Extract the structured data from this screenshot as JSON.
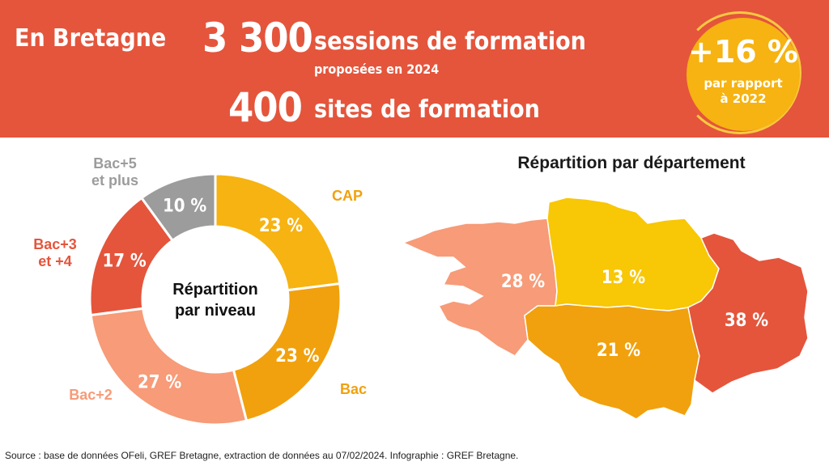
{
  "banner": {
    "region": "En Bretagne",
    "sessions_number": "3 300",
    "sessions_label": "sessions de formation",
    "sessions_sub": "proposées en 2024",
    "sites_number": "400",
    "sites_label": "sites de formation",
    "badge_value": "+16 %",
    "badge_line1": "par rapport",
    "badge_line2": "à 2022"
  },
  "colors": {
    "banner": "#e4553c",
    "cap": "#f6b311",
    "bac": "#f1a10d",
    "bac2": "#f79b78",
    "bac34": "#e4553c",
    "bac5": "#9c9c9c",
    "finistere": "#f79b78",
    "cotes_armor": "#f8c705",
    "morbihan": "#f1a10d",
    "ille_vilaine": "#e4553c"
  },
  "chart_data": [
    {
      "type": "pie",
      "title": "Répartition par niveau",
      "title_lines": [
        "Répartition",
        "par niveau"
      ],
      "categories": [
        "CAP",
        "Bac",
        "Bac+2",
        "Bac+3 et +4",
        "Bac+5 et plus"
      ],
      "category_lines": [
        [
          "CAP"
        ],
        [
          "Bac"
        ],
        [
          "Bac+2"
        ],
        [
          "Bac+3",
          "et +4"
        ],
        [
          "Bac+5",
          "et plus"
        ]
      ],
      "values": [
        23,
        23,
        27,
        17,
        10
      ],
      "value_labels": [
        "23 %",
        "23 %",
        "27 %",
        "17 %",
        "10 %"
      ],
      "colors": [
        "#f6b311",
        "#f1a10d",
        "#f79b78",
        "#e4553c",
        "#9c9c9c"
      ],
      "label_colors": [
        "#f1a10d",
        "#f1a10d",
        "#f79b78",
        "#e4553c",
        "#9c9c9c"
      ]
    },
    {
      "type": "map",
      "title": "Répartition par département",
      "values": [
        28,
        13,
        21,
        38
      ],
      "value_labels": [
        "28 %",
        "13 %",
        "21 %",
        "38 %"
      ],
      "colors": [
        "#f79b78",
        "#f8c705",
        "#f1a10d",
        "#e4553c"
      ]
    }
  ],
  "source": "Source : base de données OFeli, GREF Bretagne, extraction de données au 07/02/2024. Infographie : GREF Bretagne."
}
